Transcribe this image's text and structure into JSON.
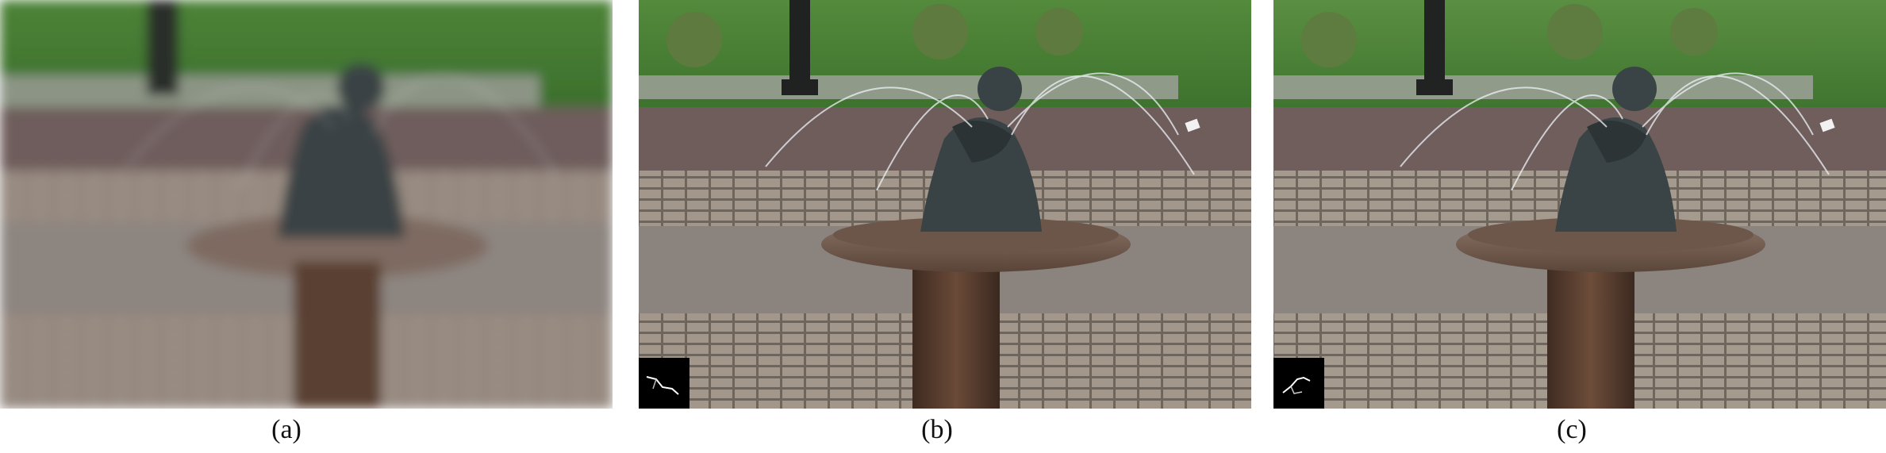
{
  "figure": {
    "panels": [
      {
        "id": "a",
        "label": "(a)",
        "description_kind": "blurred-input"
      },
      {
        "id": "b",
        "label": "(b)",
        "description_kind": "deblurred-with-kernel"
      },
      {
        "id": "c",
        "label": "(c)",
        "description_kind": "deblurred-with-kernel"
      }
    ]
  },
  "colors": {
    "grass": "#3f7a2f",
    "path": "#6f5f5d",
    "cobble": "#8a7e74",
    "stone_rim": "#7e6a60",
    "pillar": "#5a3f30",
    "statue": "#3a4244",
    "water": "#d9dfe6"
  }
}
